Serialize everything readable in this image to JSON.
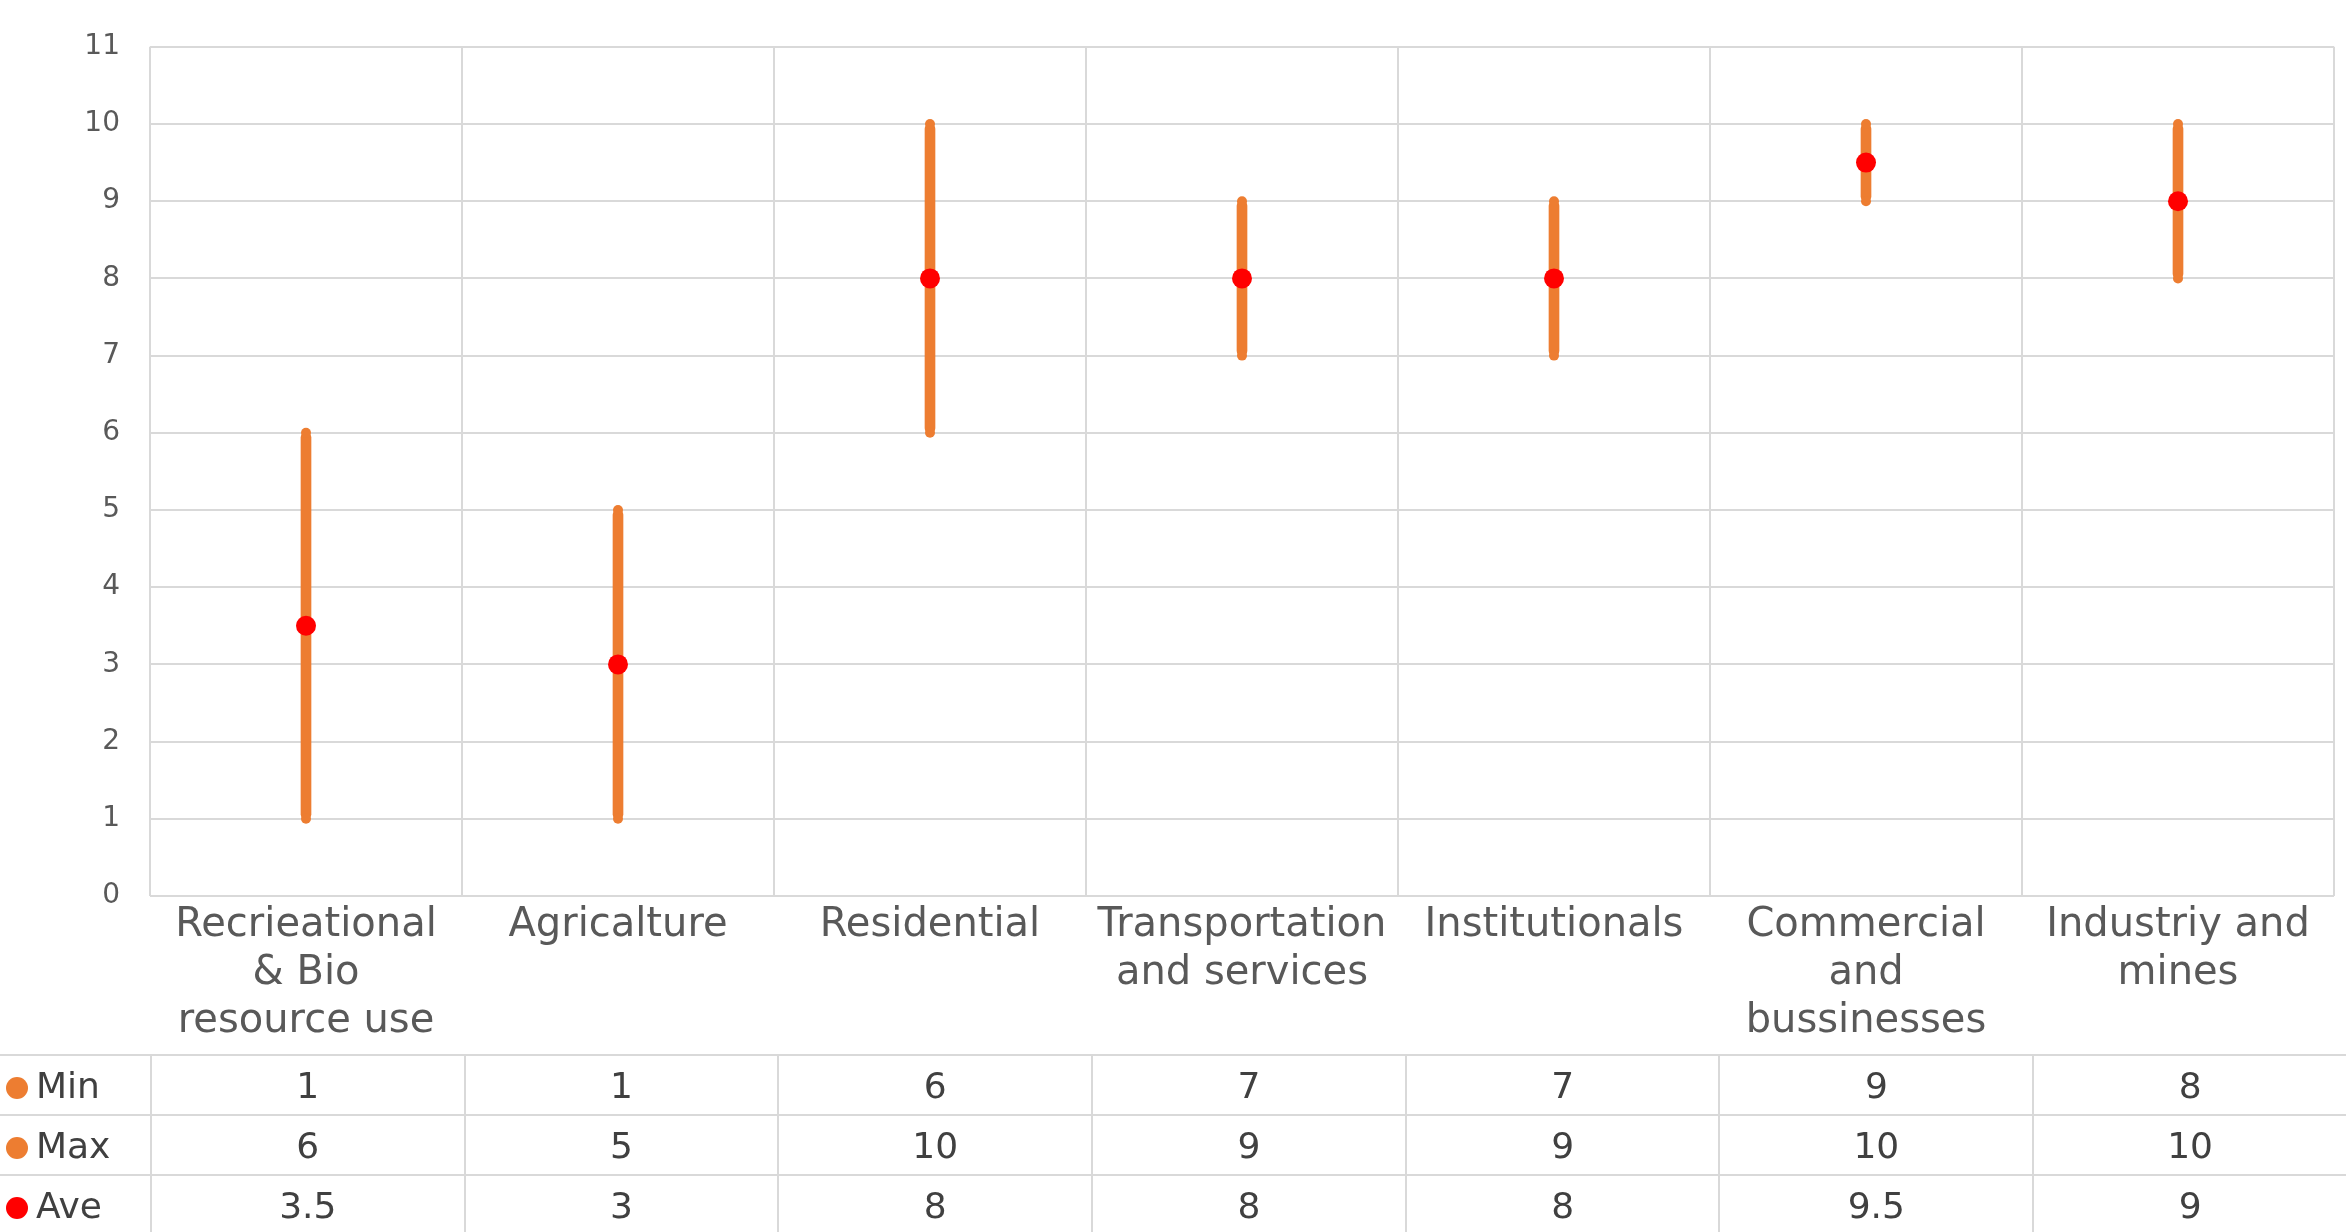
{
  "chart_data": {
    "type": "bar",
    "categories": [
      "Recrieational & Bio resource use",
      "Agricalture",
      "Residential",
      "Transportation and services",
      "Institutionals",
      "Commercial and bussinesses",
      "Industriy and mines"
    ],
    "series": [
      {
        "color": "#ed7d31",
        "base": [
          1,
          1,
          6,
          7,
          7,
          9,
          8
        ],
        "values": [
          5,
          4,
          4,
          2,
          2,
          1,
          2
        ],
        "value_labels": [
          null,
          null,
          null,
          null,
          null,
          null,
          null
        ]
      },
      {
        "type": "scatter",
        "name": "Min",
        "color": "#ed7d31",
        "marker": "circle",
        "values": [
          1,
          1,
          6,
          7,
          7,
          9,
          8
        ]
      },
      {
        "type": "scatter",
        "name": "Max",
        "color": "#ed7d31",
        "marker": "circle",
        "values": [
          6,
          5,
          10,
          9,
          9,
          10,
          10
        ]
      },
      {
        "type": "scatter",
        "name": "Ave",
        "color": "#ff0000",
        "marker": "circle",
        "values": [
          3.5,
          3,
          8,
          8,
          8,
          9.5,
          9
        ]
      }
    ],
    "ylim": [
      0,
      11
    ],
    "yticks": [
      0,
      1,
      2,
      3,
      4,
      5,
      6,
      7,
      8,
      9,
      10,
      11
    ],
    "grid": true,
    "data_labels": true,
    "legend": "bottom"
  }
}
